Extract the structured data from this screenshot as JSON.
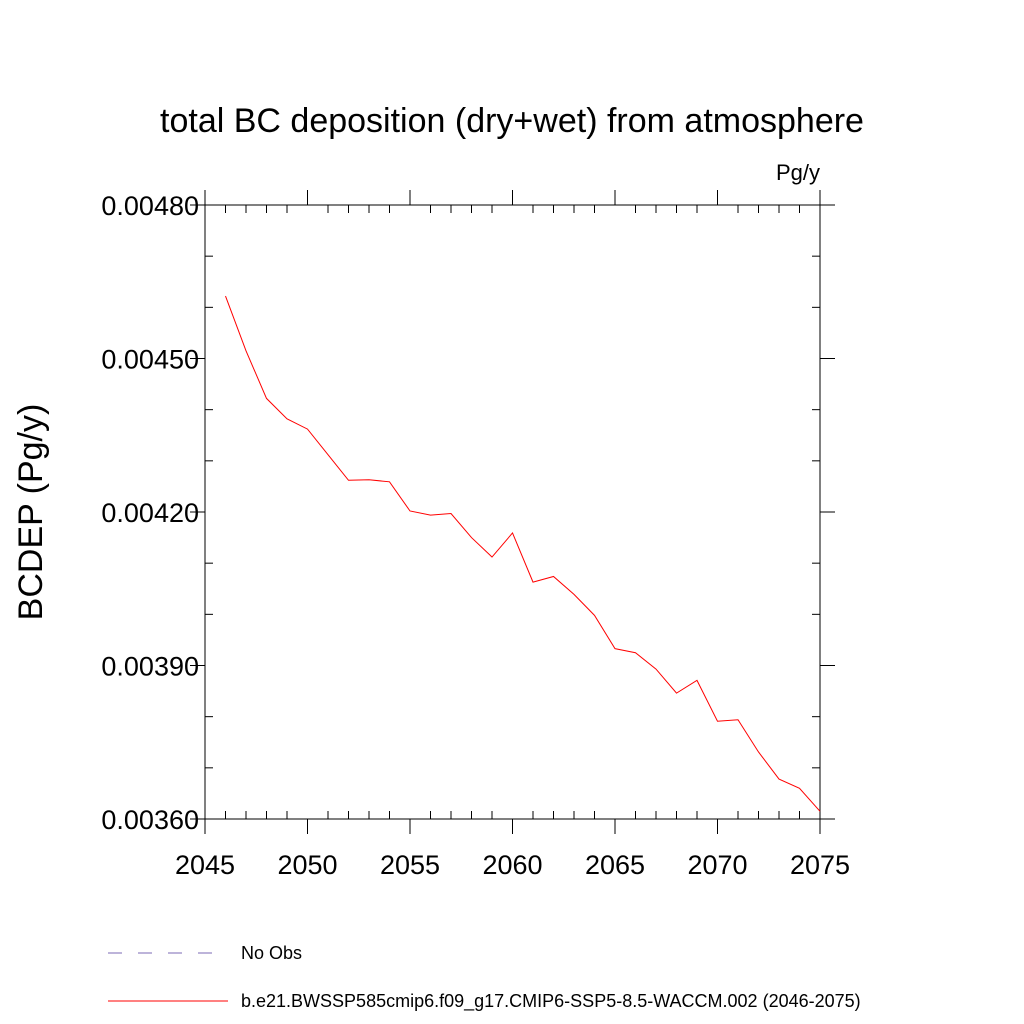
{
  "chart_data": {
    "type": "line",
    "title": "total BC deposition (dry+wet) from atmosphere",
    "units_label": "Pg/y",
    "xlabel": "",
    "ylabel": "BCDEP  (Pg/y)",
    "xlim": [
      2045,
      2075
    ],
    "ylim": [
      0.0036,
      0.0048
    ],
    "x_ticks": [
      2045,
      2050,
      2055,
      2060,
      2065,
      2070,
      2075
    ],
    "x_tick_labels": [
      "2045",
      "2050",
      "2055",
      "2060",
      "2065",
      "2070",
      "2075"
    ],
    "y_ticks": [
      0.0036,
      0.0039,
      0.0042,
      0.0045,
      0.0048
    ],
    "y_tick_labels": [
      "0.00360",
      "0.00390",
      "0.00420",
      "0.00450",
      "0.00480"
    ],
    "x_minor_step": 1,
    "y_minor_step": 0.0001,
    "grid": false,
    "legend_position": "bottom",
    "series": [
      {
        "name": "b.e21.BWSSP585cmip6.f09_g17.CMIP6-SSP5-8.5-WACCM.002 (2046-2075)",
        "color": "#ff0000",
        "style": "solid",
        "x": [
          2046,
          2047,
          2048,
          2049,
          2050,
          2051,
          2052,
          2053,
          2054,
          2055,
          2056,
          2057,
          2058,
          2059,
          2060,
          2061,
          2062,
          2063,
          2064,
          2065,
          2066,
          2067,
          2068,
          2069,
          2070,
          2071,
          2072,
          2073,
          2074,
          2075
        ],
        "y": [
          0.004622,
          0.004515,
          0.004422,
          0.004382,
          0.004362,
          0.004312,
          0.004262,
          0.004263,
          0.004259,
          0.004202,
          0.004194,
          0.004197,
          0.00415,
          0.004112,
          0.004159,
          0.004063,
          0.004074,
          0.004039,
          0.003998,
          0.003933,
          0.003925,
          0.003893,
          0.003846,
          0.003871,
          0.003791,
          0.003794,
          0.003731,
          0.003678,
          0.00366,
          0.003615
        ]
      },
      {
        "name": "No Obs",
        "color": "#7b68b5",
        "style": "dashed",
        "x": [],
        "y": []
      }
    ]
  }
}
